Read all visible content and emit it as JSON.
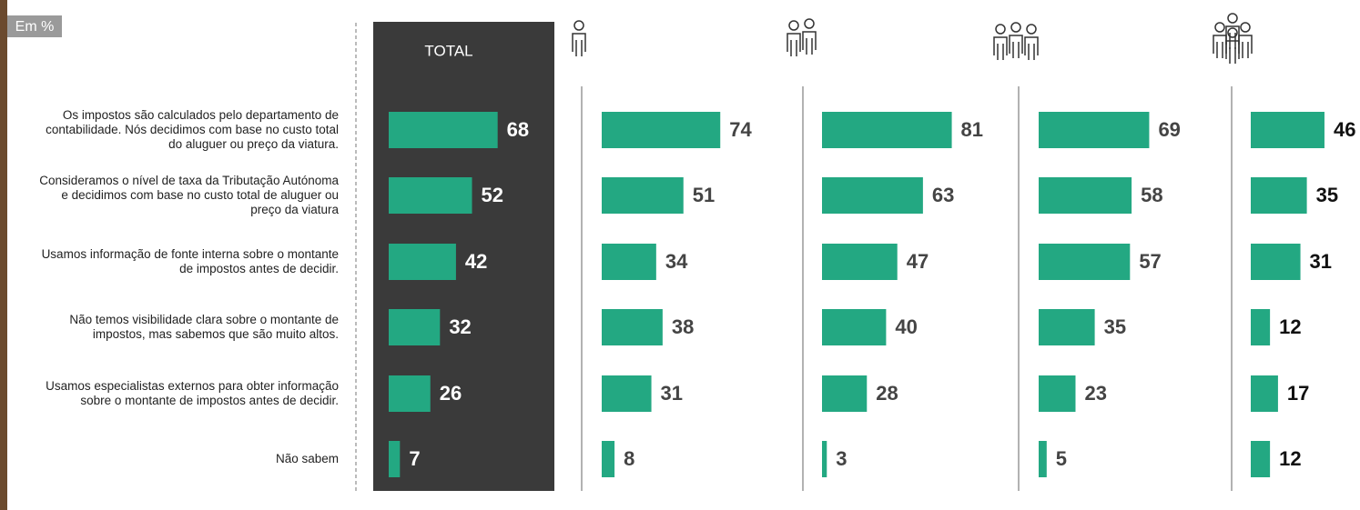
{
  "unit_label": "Em %",
  "chart_data": {
    "type": "bar",
    "orientation": "horizontal",
    "categories": [
      "Os impostos são calculados pelo departamento de contabilidade. Nós decidimos com base no custo total do aluguer ou preço da viatura.",
      "Consideramos o nível de taxa da Tributação Autónoma e decidimos com base no custo total de aluguer ou preço da viatura",
      "Usamos informação de fonte interna sobre o montante de impostos antes de decidir.",
      "Não temos visibilidade clara sobre o montante de impostos, mas sabemos que são muito altos.",
      "Usamos especialistas externos para obter informação sobre o montante de impostos antes de decidir.",
      "Não sabem"
    ],
    "series": [
      {
        "name": "TOTAL",
        "color": "#23a882",
        "values": [
          68,
          52,
          42,
          32,
          26,
          7
        ]
      },
      {
        "color": "#23a882",
        "values": [
          74,
          51,
          34,
          38,
          31,
          8
        ]
      },
      {
        "color": "#23a882",
        "values": [
          81,
          63,
          47,
          40,
          28,
          3
        ]
      },
      {
        "color": "#23a882",
        "values": [
          69,
          58,
          57,
          35,
          23,
          5
        ]
      },
      {
        "color": "#23a882",
        "values": [
          46,
          35,
          31,
          12,
          17,
          12
        ]
      }
    ]
  }
}
